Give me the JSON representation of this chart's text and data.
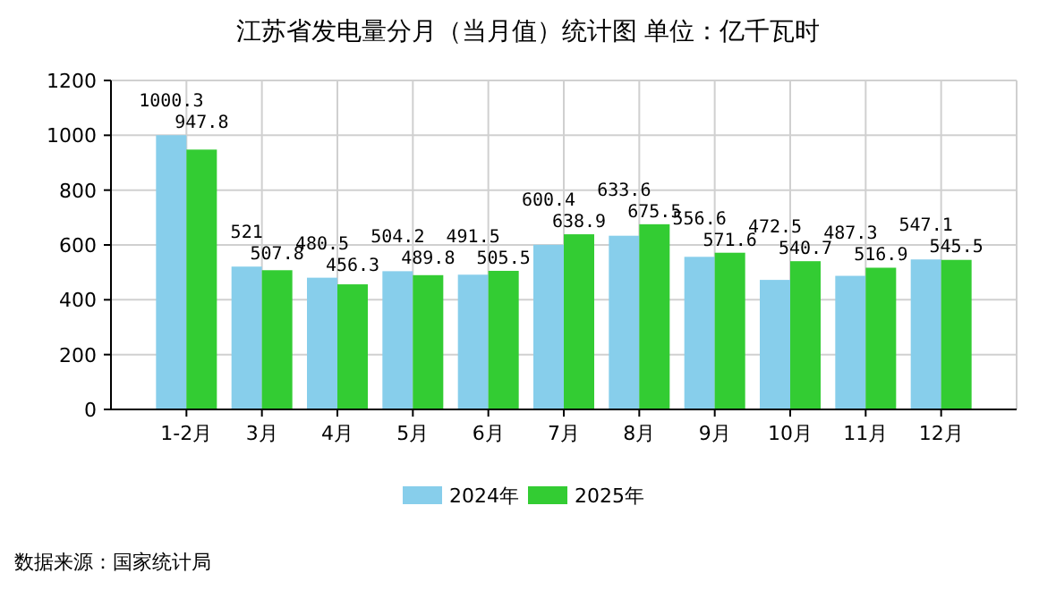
{
  "chart_data": {
    "type": "bar",
    "title": "江苏省发电量分月（当月值）统计图 单位：亿千瓦时",
    "categories": [
      "1-2月",
      "3月",
      "4月",
      "5月",
      "6月",
      "7月",
      "8月",
      "9月",
      "10月",
      "11月",
      "12月"
    ],
    "series": [
      {
        "name": "2024年",
        "color": "#87ceeb",
        "values": [
          1000.3,
          521,
          480.5,
          504.2,
          491.5,
          600.4,
          633.6,
          556.6,
          472.5,
          487.3,
          547.1
        ]
      },
      {
        "name": "2025年",
        "color": "#33cc33",
        "values": [
          947.8,
          507.8,
          456.3,
          489.8,
          505.5,
          638.9,
          675.5,
          571.6,
          540.7,
          516.9,
          545.5
        ]
      }
    ],
    "ylim": [
      0,
      1200
    ],
    "yticks": [
      0,
      200,
      400,
      600,
      800,
      1000,
      1200
    ],
    "grid": true,
    "legend": "bottom",
    "data_labels": true,
    "annotations": [
      "数据来源：国家统计局"
    ]
  }
}
